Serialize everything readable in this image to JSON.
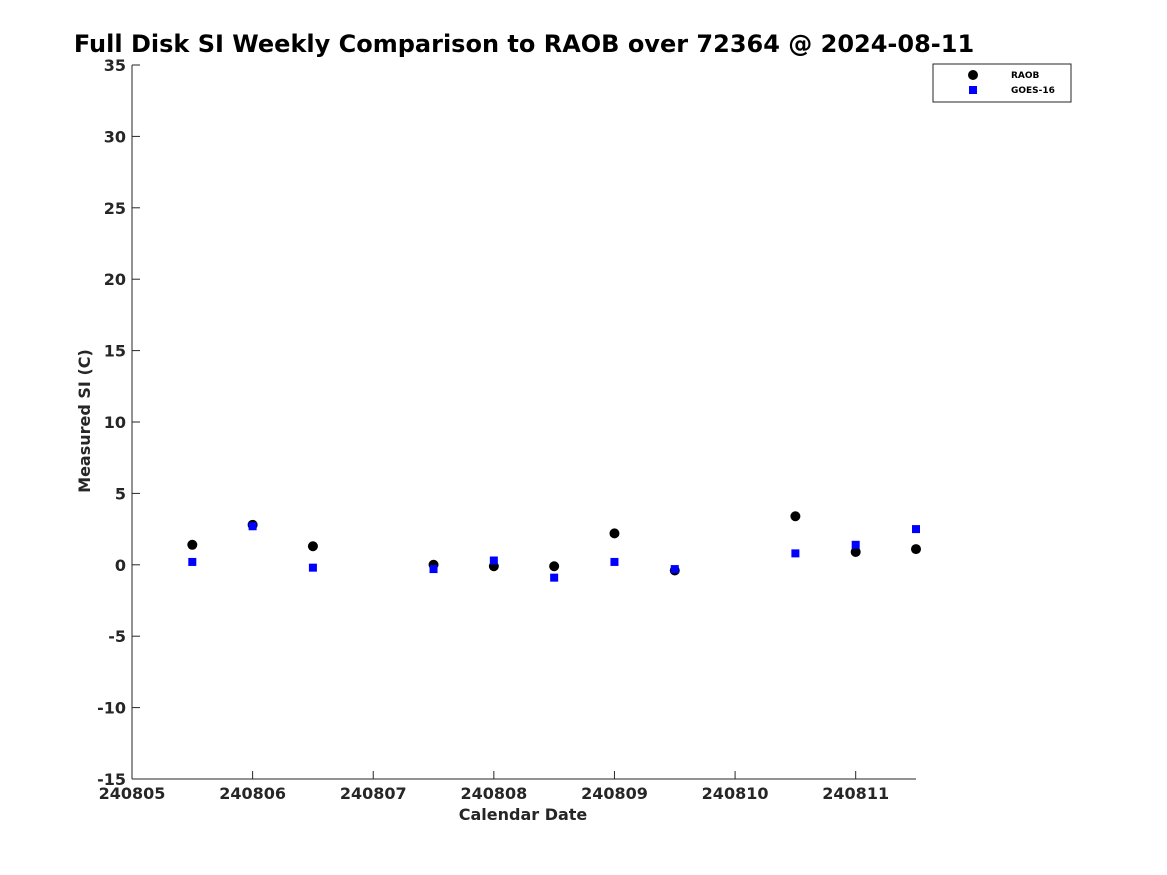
{
  "chart_data": {
    "type": "scatter",
    "title": "Full Disk SI Weekly Comparison to RAOB over 72364 @ 2024-08-11",
    "xlabel": "Calendar Date",
    "ylabel": "Measured SI (C)",
    "xlim": [
      "240805",
      "240811.5"
    ],
    "ylim": [
      -15,
      35
    ],
    "x_ticks": [
      "240805",
      "240806",
      "240807",
      "240808",
      "240809",
      "240810",
      "240811"
    ],
    "y_ticks": [
      -15,
      -10,
      -5,
      0,
      5,
      10,
      15,
      20,
      25,
      30,
      35
    ],
    "grid": false,
    "legend_position": "top-right",
    "series": [
      {
        "name": "RAOB",
        "marker": "circle",
        "color": "#000000",
        "points": [
          {
            "x": "240805.5",
            "y": 1.4
          },
          {
            "x": "240806",
            "y": 2.8
          },
          {
            "x": "240806.5",
            "y": 1.3
          },
          {
            "x": "240807.5",
            "y": 0.0
          },
          {
            "x": "240808",
            "y": -0.1
          },
          {
            "x": "240808.5",
            "y": -0.1
          },
          {
            "x": "240809",
            "y": 2.2
          },
          {
            "x": "240809.5",
            "y": -0.4
          },
          {
            "x": "240810.5",
            "y": 3.4
          },
          {
            "x": "240811",
            "y": 0.9
          },
          {
            "x": "240811.5",
            "y": 1.1
          }
        ]
      },
      {
        "name": "GOES-16",
        "marker": "square",
        "color": "#0000ff",
        "points": [
          {
            "x": "240805.5",
            "y": 0.2
          },
          {
            "x": "240806",
            "y": 2.7
          },
          {
            "x": "240806.5",
            "y": -0.2
          },
          {
            "x": "240807.5",
            "y": -0.3
          },
          {
            "x": "240808",
            "y": 0.3
          },
          {
            "x": "240808.5",
            "y": -0.9
          },
          {
            "x": "240809",
            "y": 0.2
          },
          {
            "x": "240809.5",
            "y": -0.3
          },
          {
            "x": "240810.5",
            "y": 0.8
          },
          {
            "x": "240811",
            "y": 1.4
          },
          {
            "x": "240811.5",
            "y": 2.5
          }
        ]
      }
    ]
  }
}
